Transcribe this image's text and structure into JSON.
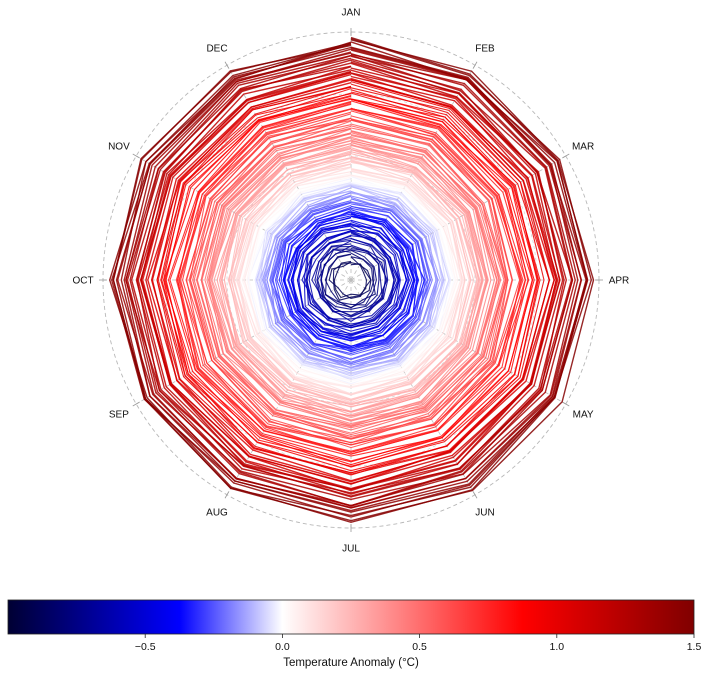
{
  "chart_data": {
    "type": "line",
    "subtype": "polar-spiral",
    "title": "",
    "months": [
      "JAN",
      "FEB",
      "MAR",
      "APR",
      "MAY",
      "JUN",
      "JUL",
      "AUG",
      "SEP",
      "OCT",
      "NOV",
      "DEC"
    ],
    "anomaly_range": [
      -1.0,
      1.5
    ],
    "grid": true,
    "colorbar": {
      "label": "Temperature Anomaly (°C)",
      "ticks": [
        -0.5,
        0.0,
        0.5,
        1.0,
        1.5
      ],
      "tick_labels": [
        "−0.5",
        "0.0",
        "0.5",
        "1.0",
        "1.5"
      ],
      "min": -1.0,
      "max": 1.5,
      "colormap": "seismic",
      "placement": "bottom"
    },
    "yearly_annual_anomaly_profile": {
      "description_of_trend": "anomalies rise from about -0.9 at the centre (earliest records) to about 1.45 at the outer ring (latest records)",
      "values": [
        -0.9,
        -0.82,
        -0.75,
        -0.7,
        -0.64,
        -0.6,
        -0.55,
        -0.5,
        -0.46,
        -0.42,
        -0.38,
        -0.35,
        -0.3,
        -0.26,
        -0.22,
        -0.18,
        -0.14,
        -0.1,
        -0.06,
        -0.02,
        0.02,
        0.06,
        0.1,
        0.14,
        0.18,
        0.22,
        0.26,
        0.3,
        0.34,
        0.38,
        0.42,
        0.46,
        0.5,
        0.55,
        0.6,
        0.65,
        0.7,
        0.75,
        0.8,
        0.86,
        0.92,
        0.98,
        1.04,
        1.1,
        1.16,
        1.22,
        1.28,
        1.34,
        1.4,
        1.45
      ]
    }
  }
}
